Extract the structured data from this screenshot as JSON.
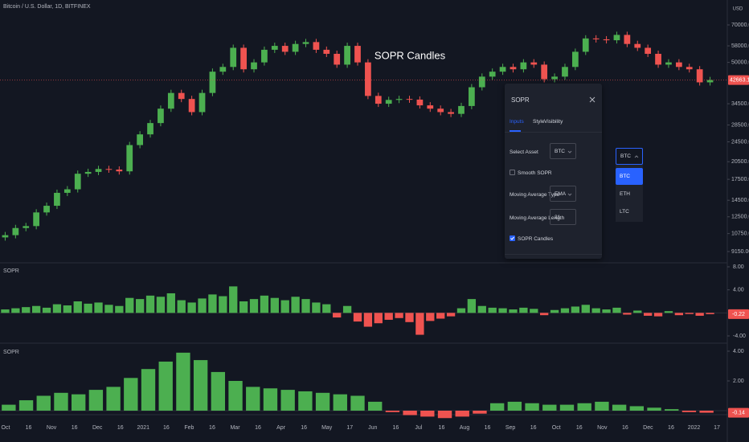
{
  "header": {
    "symbol": "Bitcoin / U.S. Dollar, 1D, BITFINEX",
    "currency": "USD",
    "annotation": "SOPR Candles"
  },
  "colors": {
    "up": "#4caf50",
    "down": "#ef5350"
  },
  "price_pane": {
    "ticks": [
      {
        "value": 70000,
        "label": "70000.00"
      },
      {
        "value": 58000,
        "label": "58000.00"
      },
      {
        "value": 50000,
        "label": "50000.00"
      },
      {
        "value": 34500,
        "label": "34500.00"
      },
      {
        "value": 28500,
        "label": "28500.00"
      },
      {
        "value": 24500,
        "label": "24500.00"
      },
      {
        "value": 20500,
        "label": "20500.00"
      },
      {
        "value": 17500,
        "label": "17500.00"
      },
      {
        "value": 14500,
        "label": "14500.00"
      },
      {
        "value": 12500,
        "label": "12500.00"
      },
      {
        "value": 10750,
        "label": "10750.00"
      },
      {
        "value": 9150,
        "label": "9150.00"
      }
    ],
    "last": {
      "value": 42663.1,
      "label": "42663.1"
    },
    "closes": [
      10600,
      11300,
      11500,
      13000,
      13800,
      15500,
      16000,
      18400,
      18700,
      19200,
      19100,
      18800,
      23800,
      26200,
      29000,
      33000,
      38000,
      36000,
      32000,
      38000,
      46000,
      48000,
      57000,
      47000,
      50000,
      56000,
      58000,
      55000,
      59000,
      60000,
      56000,
      54000,
      49000,
      58000,
      50000,
      37000,
      34500,
      35700,
      36000,
      35800,
      34000,
      33000,
      32000,
      31500,
      33800,
      40000,
      44000,
      46000,
      48000,
      47000,
      50000,
      49000,
      43000,
      44000,
      48000,
      55000,
      62000,
      61500,
      61000,
      64000,
      59000,
      57000,
      54000,
      49000,
      50000,
      48000,
      47000,
      41800,
      42663.1
    ]
  },
  "sopr_pane": {
    "label": "SOPR",
    "ticks": [
      {
        "value": 8,
        "label": "8.00"
      },
      {
        "value": 4,
        "label": "4.00"
      },
      {
        "value": -4,
        "label": "-4.00"
      }
    ],
    "last": {
      "value": -0.22,
      "label": "-0.22"
    },
    "values": [
      0.6,
      0.8,
      1.0,
      1.2,
      0.9,
      1.5,
      1.3,
      2.0,
      1.6,
      1.8,
      1.4,
      1.2,
      2.6,
      2.4,
      3.0,
      2.8,
      3.4,
      2.2,
      1.8,
      2.5,
      3.2,
      2.9,
      4.6,
      2.0,
      2.4,
      3.0,
      2.6,
      2.2,
      2.8,
      2.4,
      1.8,
      1.5,
      -0.8,
      1.2,
      -1.5,
      -2.4,
      -1.8,
      -1.2,
      -0.9,
      -1.6,
      -3.8,
      -1.4,
      -1.0,
      -0.6,
      0.8,
      2.4,
      1.2,
      0.9,
      0.8,
      0.6,
      0.9,
      0.7,
      -0.4,
      0.5,
      0.8,
      1.1,
      1.4,
      0.8,
      0.6,
      0.9,
      -0.3,
      0.4,
      -0.5,
      -0.6,
      0.3,
      -0.4,
      -0.2,
      -0.5,
      -0.22
    ]
  },
  "smooth_pane": {
    "label": "SOPR",
    "ticks": [
      {
        "value": 4,
        "label": "4.00"
      },
      {
        "value": 2,
        "label": "2.00"
      }
    ],
    "last": {
      "value": -0.14,
      "label": "-0.14"
    },
    "values": [
      0.4,
      0.7,
      1.0,
      1.2,
      1.1,
      1.4,
      1.6,
      2.2,
      2.8,
      3.3,
      3.9,
      3.4,
      2.6,
      2.0,
      1.6,
      1.5,
      1.4,
      1.3,
      1.2,
      1.1,
      1.0,
      0.6,
      -0.1,
      -0.3,
      -0.4,
      -0.5,
      -0.4,
      -0.2,
      0.5,
      0.6,
      0.5,
      0.4,
      0.4,
      0.5,
      0.6,
      0.4,
      0.3,
      0.2,
      0.1,
      -0.1,
      -0.14
    ]
  },
  "time_axis": [
    "Oct",
    "16",
    "Nov",
    "16",
    "Dec",
    "16",
    "2021",
    "16",
    "Feb",
    "16",
    "Mar",
    "16",
    "Apr",
    "16",
    "May",
    "17",
    "Jun",
    "16",
    "Jul",
    "16",
    "Aug",
    "16",
    "Sep",
    "16",
    "Oct",
    "16",
    "Nov",
    "16",
    "Dec",
    "16",
    "2022",
    "17"
  ],
  "dialog": {
    "title": "SOPR",
    "tabs": [
      "Inputs",
      "Style",
      "Visibility"
    ],
    "fields": [
      {
        "label": "Select Asset",
        "value": "BTC"
      },
      {
        "label": "Smooth SOPR",
        "checked": false
      },
      {
        "label": "Moving Average Type",
        "value": "EMA"
      },
      {
        "label": "Moving Average Length",
        "value": "21"
      },
      {
        "label": "SOPR Candles",
        "checked": true
      }
    ]
  },
  "dropdown": {
    "selected": "BTC",
    "options": [
      "BTC",
      "ETH",
      "LTC"
    ]
  }
}
